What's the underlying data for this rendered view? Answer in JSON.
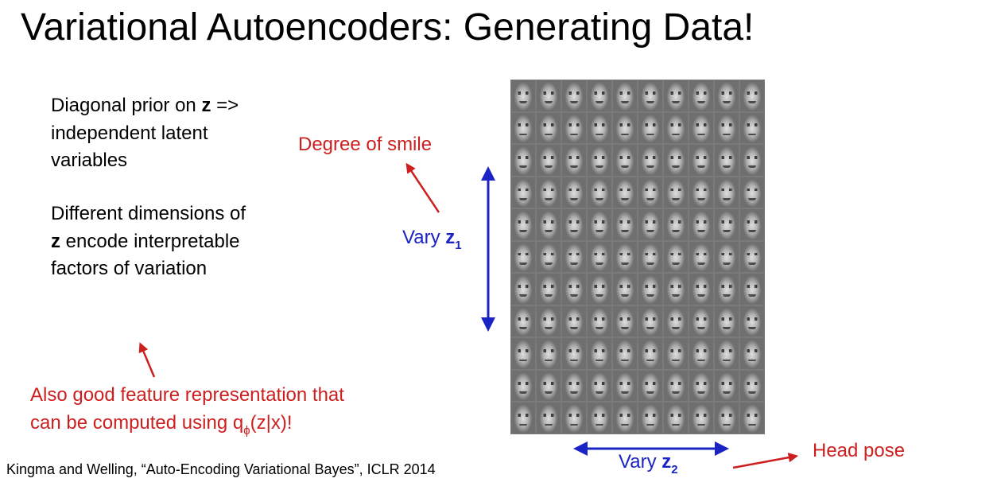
{
  "slide": {
    "title": "Variational Autoencoders: Generating Data!"
  },
  "bullets": [
    {
      "pre": "Diagonal prior on ",
      "bold": "z",
      "post": " => independent latent variables"
    },
    {
      "pre": "Different dimensions of ",
      "bold": "z",
      "post": " encode interpretable factors of variation"
    }
  ],
  "annotations": {
    "smile": "Degree of smile",
    "vary_z1_text": "Vary ",
    "vary_z1_var": "z",
    "vary_z1_sub": "1",
    "vary_z2_text": "Vary ",
    "vary_z2_var": "z",
    "vary_z2_sub": "2",
    "head_pose": "Head pose"
  },
  "note": {
    "line1": "Also good feature representation that",
    "line2_pre": "can be computed using q",
    "line2_sub": "ϕ",
    "line2_post": "(z|x)!"
  },
  "citation": "Kingma and Welling, “Auto-Encoding Variational Bayes”, ICLR 2014",
  "figure": {
    "rows": 11,
    "cols": 10
  },
  "colors": {
    "annotation_red": "#cc1f1f",
    "axis_blue": "#1a23c4"
  }
}
